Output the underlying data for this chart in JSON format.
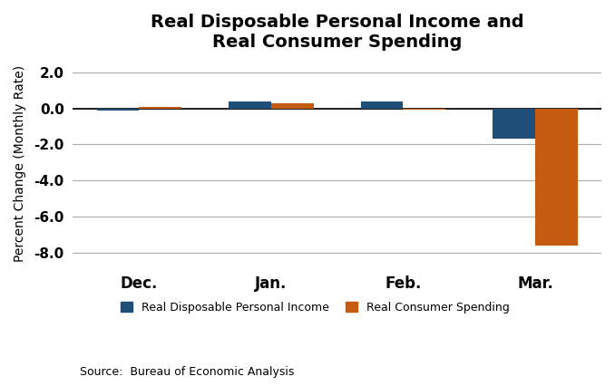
{
  "title": "Real Disposable Personal Income and\nReal Consumer Spending",
  "categories": [
    "Dec.",
    "Jan.",
    "Feb.",
    "Mar."
  ],
  "income_values": [
    -0.1,
    0.4,
    0.4,
    -1.7
  ],
  "spending_values": [
    0.1,
    0.3,
    -0.05,
    -7.6
  ],
  "income_color": "#1F4E79",
  "spending_color": "#C55A11",
  "ylabel": "Percent Change (Monthly Rate)",
  "ylim": [
    -8.8,
    2.7
  ],
  "yticks": [
    2.0,
    0.0,
    -2.0,
    -4.0,
    -6.0,
    -8.0
  ],
  "legend_income": "Real Disposable Personal Income",
  "legend_spending": "Real Consumer Spending",
  "source": "Source:  Bureau of Economic Analysis",
  "bar_width": 0.32,
  "background_color": "#ffffff",
  "grid_color": "#aaaaaa"
}
